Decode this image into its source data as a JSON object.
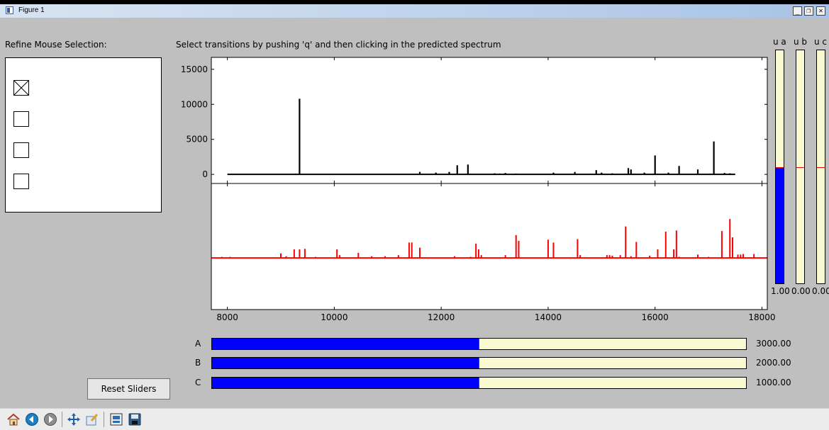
{
  "window": {
    "title": "Figure 1",
    "controls": {
      "minimize": "_",
      "restore": "❐",
      "close": "✕"
    }
  },
  "panel_label": "Refine Mouse Selection:",
  "instruction": "Select transitions by pushing 'q' and then clicking in the predicted spectrum",
  "checkboxes": [
    {
      "checked": true
    },
    {
      "checked": false
    },
    {
      "checked": false
    },
    {
      "checked": false
    }
  ],
  "top_plot": {
    "color": "#000000",
    "yticks": [
      "15000",
      "10000",
      "5000",
      "0"
    ],
    "ytick_values": [
      15000,
      10000,
      5000,
      0
    ],
    "ylim": [
      -1300,
      16700
    ],
    "baseline": 0,
    "xrange": [
      8000,
      17500
    ],
    "peaks": [
      [
        9350,
        10800
      ],
      [
        11600,
        350
      ],
      [
        11900,
        250
      ],
      [
        12150,
        350
      ],
      [
        12300,
        1300
      ],
      [
        12500,
        1400
      ],
      [
        13000,
        150
      ],
      [
        13100,
        120
      ],
      [
        13200,
        200
      ],
      [
        13400,
        120
      ],
      [
        14100,
        250
      ],
      [
        14500,
        350
      ],
      [
        14900,
        600
      ],
      [
        15000,
        250
      ],
      [
        15200,
        150
      ],
      [
        15500,
        900
      ],
      [
        15550,
        700
      ],
      [
        15800,
        250
      ],
      [
        16000,
        2700
      ],
      [
        16250,
        250
      ],
      [
        16450,
        1200
      ],
      [
        16800,
        700
      ],
      [
        17100,
        4700
      ],
      [
        17300,
        200
      ],
      [
        17400,
        150
      ]
    ]
  },
  "bottom_plot": {
    "color": "#ff0000",
    "xticks": [
      "8000",
      "10000",
      "12000",
      "14000",
      "16000",
      "18000"
    ],
    "xtick_values": [
      8000,
      10000,
      12000,
      14000,
      16000,
      18000
    ],
    "xlim": [
      7700,
      18100
    ],
    "ylim": [
      -0.9,
      1.3
    ],
    "baseline": 0,
    "xrange": [
      7700,
      18100
    ],
    "peaks": [
      [
        7900,
        0.02
      ],
      [
        8050,
        0.02
      ],
      [
        9000,
        0.08
      ],
      [
        9100,
        0.03
      ],
      [
        9250,
        0.15
      ],
      [
        9350,
        0.15
      ],
      [
        9450,
        0.16
      ],
      [
        9650,
        0.02
      ],
      [
        10050,
        0.15
      ],
      [
        10100,
        0.05
      ],
      [
        10450,
        0.09
      ],
      [
        10700,
        0.03
      ],
      [
        10950,
        0.03
      ],
      [
        11200,
        0.05
      ],
      [
        11400,
        0.27
      ],
      [
        11450,
        0.27
      ],
      [
        11600,
        0.18
      ],
      [
        12250,
        0.03
      ],
      [
        12550,
        0.02
      ],
      [
        12650,
        0.25
      ],
      [
        12700,
        0.15
      ],
      [
        12750,
        0.05
      ],
      [
        13200,
        0.05
      ],
      [
        13400,
        0.4
      ],
      [
        13450,
        0.3
      ],
      [
        14000,
        0.32
      ],
      [
        14100,
        0.27
      ],
      [
        14550,
        0.33
      ],
      [
        14600,
        0.05
      ],
      [
        15100,
        0.05
      ],
      [
        15150,
        0.05
      ],
      [
        15200,
        0.04
      ],
      [
        15350,
        0.05
      ],
      [
        15450,
        0.55
      ],
      [
        15550,
        0.03
      ],
      [
        15650,
        0.28
      ],
      [
        15900,
        0.04
      ],
      [
        16050,
        0.15
      ],
      [
        16200,
        0.46
      ],
      [
        16350,
        0.15
      ],
      [
        16400,
        0.48
      ],
      [
        16450,
        0.02
      ],
      [
        16800,
        0.06
      ],
      [
        17000,
        0.02
      ],
      [
        17250,
        0.47
      ],
      [
        17400,
        0.68
      ],
      [
        17450,
        0.36
      ],
      [
        17550,
        0.06
      ],
      [
        17600,
        0.06
      ],
      [
        17650,
        0.07
      ],
      [
        17850,
        0.07
      ]
    ]
  },
  "sliders": [
    {
      "label": "A",
      "value": "3000.00",
      "fraction": 0.5
    },
    {
      "label": "B",
      "value": "2000.00",
      "fraction": 0.5
    },
    {
      "label": "C",
      "value": "1000.00",
      "fraction": 0.5
    }
  ],
  "vsliders": [
    {
      "label": "u a",
      "value": "1.00",
      "fraction": 1.0
    },
    {
      "label": "u b",
      "value": "0.00",
      "fraction": 0.0
    },
    {
      "label": "u c",
      "value": "0.00",
      "fraction": 0.0
    }
  ],
  "reset_label": "Reset Sliders",
  "colors": {
    "slider_fill": "#0000ff",
    "slider_track": "#fafad2",
    "slider_marker": "#ff0000"
  },
  "toolbar": [
    {
      "name": "home-icon"
    },
    {
      "name": "back-icon"
    },
    {
      "name": "forward-icon"
    },
    {
      "name": "pan-icon"
    },
    {
      "name": "zoom-icon"
    },
    {
      "name": "subplots-icon"
    },
    {
      "name": "save-icon"
    }
  ]
}
